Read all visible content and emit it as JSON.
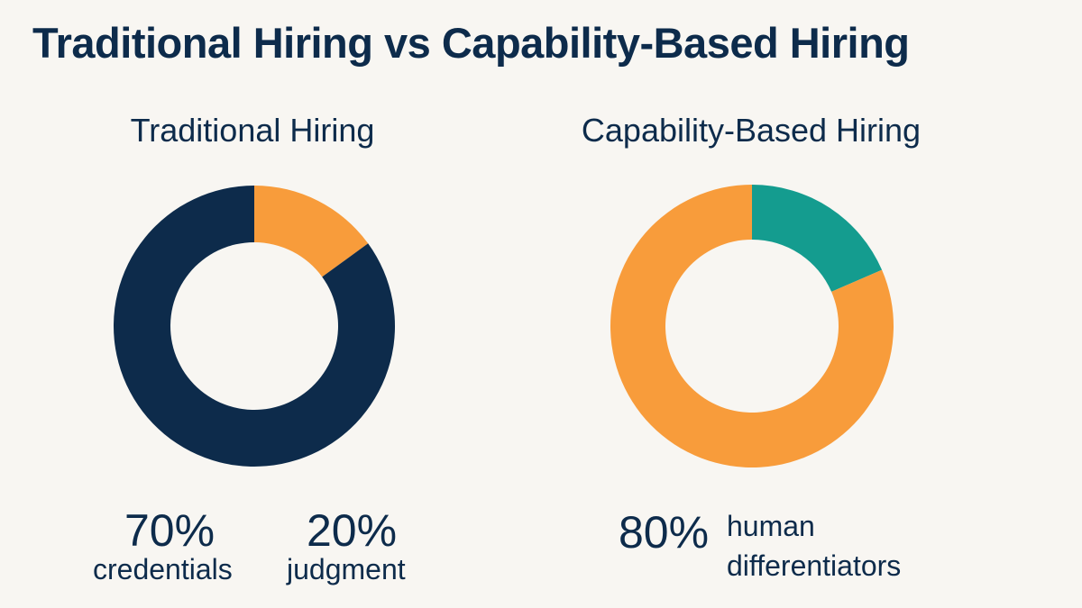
{
  "title": "Traditional Hiring vs Capability-Based Hiring",
  "colors": {
    "navy": "#0d2b4b",
    "orange": "#f89c3b",
    "teal": "#149c8f",
    "background": "#f8f6f2"
  },
  "chart_data": [
    {
      "type": "pie",
      "donut": true,
      "title": "Traditional Hiring",
      "slices": [
        {
          "value": 15,
          "color": "#f89c3b"
        },
        {
          "value": 85,
          "color": "#0d2b4b"
        }
      ],
      "annotations": [
        {
          "value": "70%",
          "label": "credentials"
        },
        {
          "value": "20%",
          "label": "judgment"
        }
      ]
    },
    {
      "type": "pie",
      "donut": true,
      "title": "Capability-Based Hiring",
      "slices": [
        {
          "value": 18.5,
          "color": "#149c8f"
        },
        {
          "value": 81.5,
          "color": "#f89c3b"
        }
      ],
      "annotations": [
        {
          "value": "80%",
          "label": "human differentiators"
        }
      ]
    }
  ]
}
